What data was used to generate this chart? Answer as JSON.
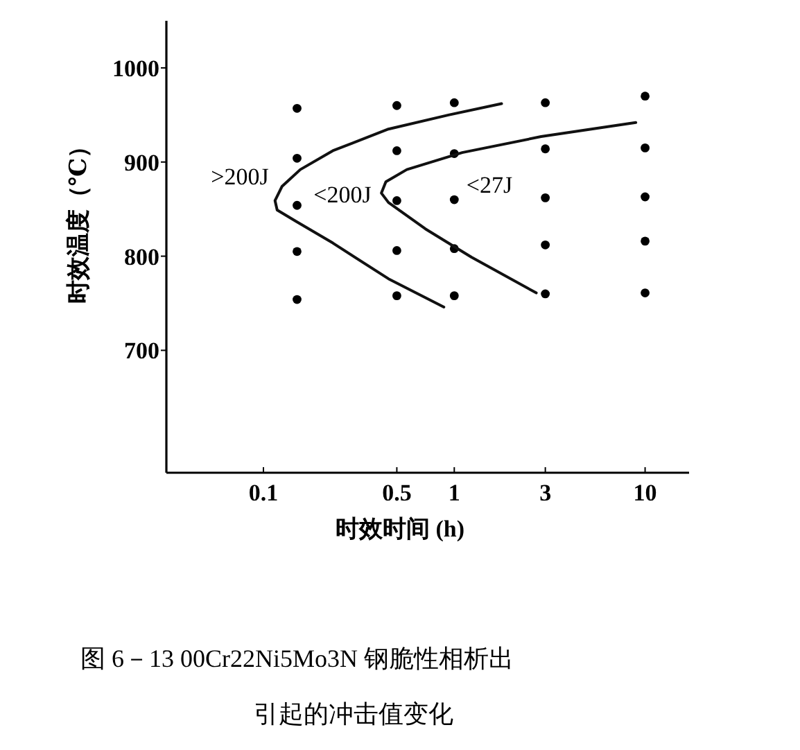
{
  "chart_data": {
    "type": "scatter",
    "xlabel": "时效时间 (h)",
    "ylabel": "时效温度（℃）",
    "log": "x",
    "xlim": [
      0.031,
      17
    ],
    "ylim": [
      570,
      1050
    ],
    "xticks": [
      0.1,
      0.5,
      1,
      3,
      10
    ],
    "yticks": [
      700,
      800,
      900,
      1000
    ],
    "series": [
      {
        "color": "#000000",
        "marker": "circle",
        "x": [
          0.15,
          0.15,
          0.15,
          0.15,
          0.15,
          0.5,
          0.5,
          0.5,
          0.5,
          0.5,
          1,
          1,
          1,
          1,
          1,
          3,
          3,
          3,
          3,
          3,
          10,
          10,
          10,
          10,
          10
        ],
        "values": [
          957,
          904,
          854,
          805,
          754,
          960,
          912,
          859,
          806,
          758,
          963,
          909,
          860,
          808,
          758,
          963,
          914,
          862,
          812,
          760,
          970,
          915,
          863,
          816,
          761
        ]
      },
      {
        "type": "line",
        "color": "#111111",
        "x": [
          0.882,
          0.452,
          0.231,
          0.148,
          0.118,
          0.115,
          0.125,
          0.156,
          0.231,
          0.452,
          0.933,
          1.77
        ],
        "values": [
          746,
          776,
          814,
          837,
          849,
          859,
          874,
          892,
          912,
          935,
          950,
          962
        ]
      },
      {
        "type": "line",
        "color": "#111111",
        "x": [
          2.69,
          1.23,
          0.706,
          0.452,
          0.415,
          0.438,
          0.564,
          1.1,
          2.85,
          8.94
        ],
        "values": [
          761,
          799,
          829,
          857,
          867,
          879,
          892,
          910,
          927,
          942
        ]
      }
    ],
    "annotations": [
      ">200J",
      "<200J",
      "<27J",
      "图 6－13   00Cr22Ni5Mo3N 钢脆性相析出",
      "引起的冲击值变化"
    ]
  }
}
